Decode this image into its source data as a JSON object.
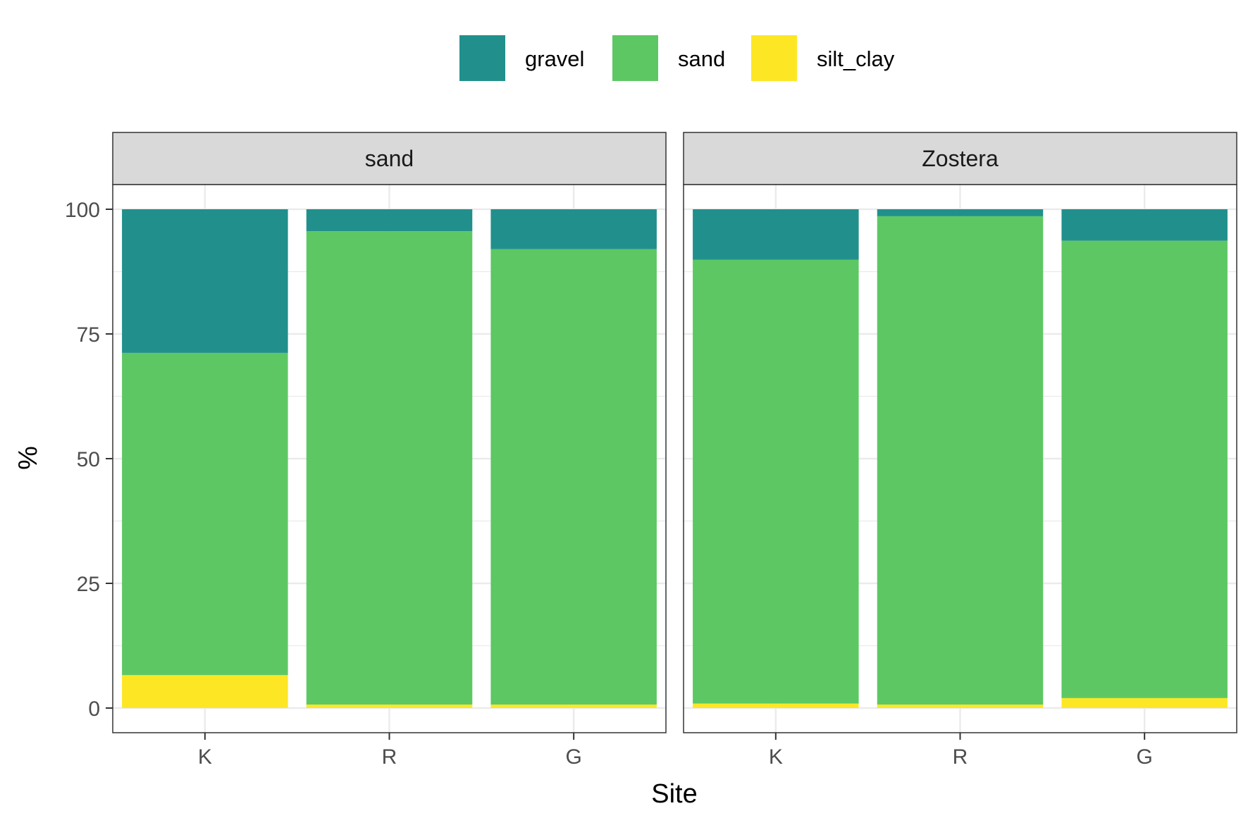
{
  "chart_data": {
    "type": "bar",
    "stacked": true,
    "xlabel": "Site",
    "ylabel": "%",
    "ylim": [
      0,
      100
    ],
    "yticks": [
      0,
      25,
      50,
      75,
      100
    ],
    "grid": true,
    "legend_position": "top",
    "categories": [
      "K",
      "R",
      "G"
    ],
    "facets": [
      {
        "label": "sand",
        "series": [
          {
            "name": "gravel",
            "color": "#21908C",
            "values": [
              28.8,
              4.4,
              8.0
            ]
          },
          {
            "name": "sand",
            "color": "#5DC863",
            "values": [
              64.6,
              94.9,
              91.3
            ]
          },
          {
            "name": "silt_clay",
            "color": "#FDE725",
            "values": [
              6.6,
              0.7,
              0.7
            ]
          }
        ]
      },
      {
        "label": "Zostera",
        "series": [
          {
            "name": "gravel",
            "color": "#21908C",
            "values": [
              10.1,
              1.4,
              6.3
            ]
          },
          {
            "name": "sand",
            "color": "#5DC863",
            "values": [
              89.0,
              97.9,
              91.7
            ]
          },
          {
            "name": "silt_clay",
            "color": "#FDE725",
            "values": [
              0.9,
              0.7,
              2.0
            ]
          }
        ]
      }
    ],
    "legend": [
      {
        "name": "gravel",
        "color": "#21908C"
      },
      {
        "name": "sand",
        "color": "#5DC863"
      },
      {
        "name": "silt_clay",
        "color": "#FDE725"
      }
    ]
  }
}
